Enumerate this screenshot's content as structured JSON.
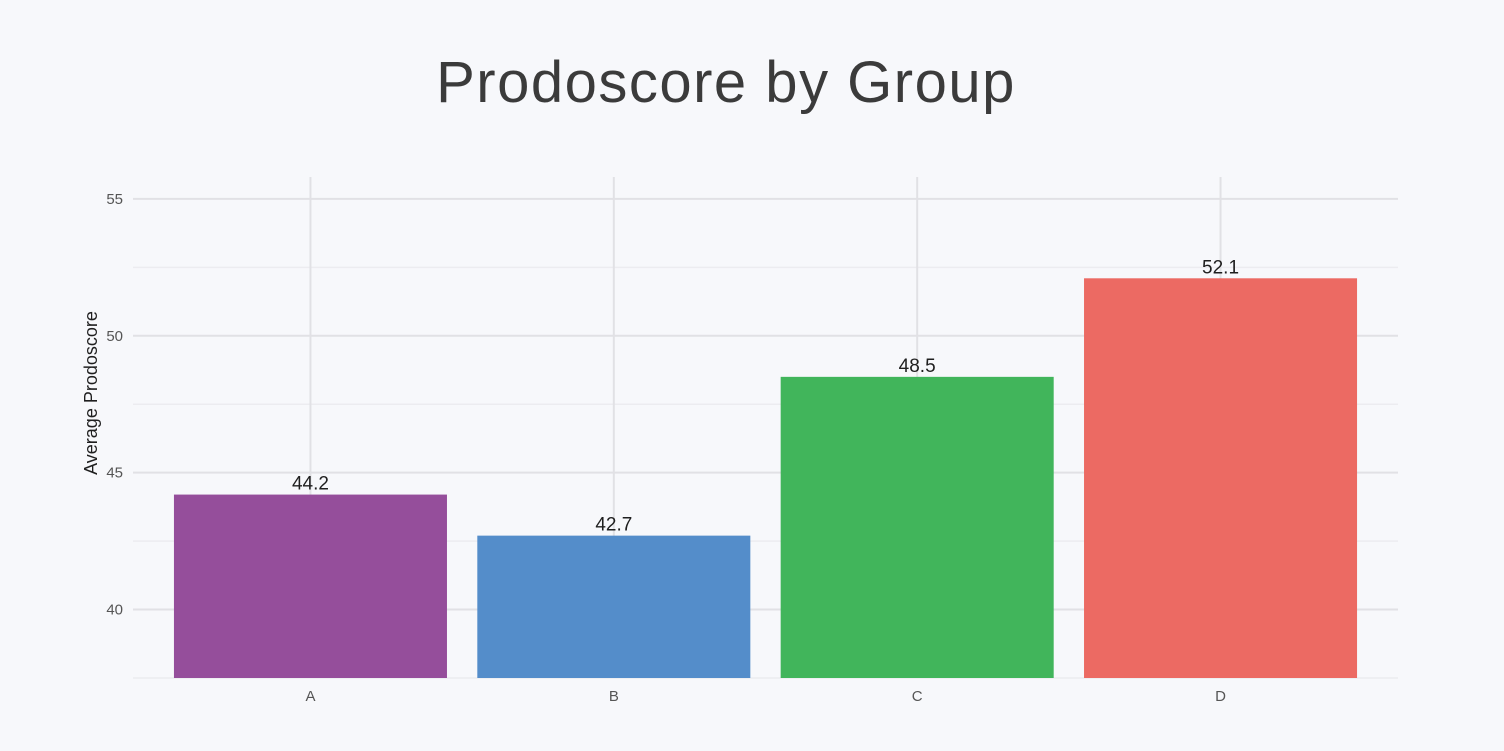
{
  "chart_data": {
    "type": "bar",
    "title": "Prodoscore by Group",
    "xlabel": "",
    "ylabel": "Average Prodoscore",
    "categories": [
      "A",
      "B",
      "C",
      "D"
    ],
    "values": [
      44.2,
      42.7,
      48.5,
      52.1
    ],
    "value_labels": [
      "44.2",
      "42.7",
      "48.5",
      "52.1"
    ],
    "colors": [
      "#954e9b",
      "#548dca",
      "#41b55b",
      "#ec6a63"
    ],
    "ylim": [
      37.5,
      55.8
    ],
    "yticks": [
      40,
      45,
      50,
      55
    ],
    "ytick_labels": [
      "40",
      "45",
      "50",
      "55"
    ],
    "grid": true,
    "legend": "none"
  },
  "theme": {
    "background": "#f7f8fb",
    "grid_major": "#e1e1e5",
    "grid_minor": "#ececf0",
    "title_color": "#3b3b3b",
    "text_color": "#1f1f1f",
    "tick_color": "#555555"
  }
}
